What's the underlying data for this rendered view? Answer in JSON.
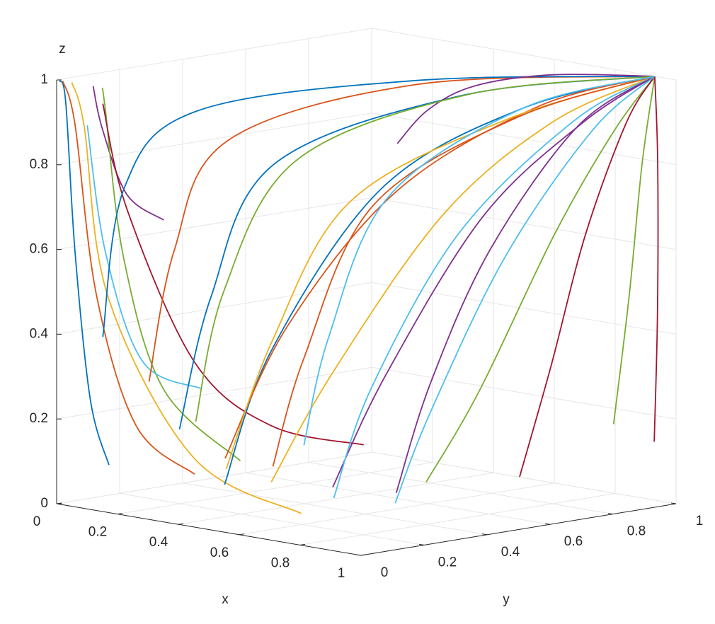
{
  "chart_data": {
    "type": "line3d",
    "xlabel": "x",
    "ylabel": "y",
    "zlabel": "z",
    "xlim": [
      0,
      1
    ],
    "ylim": [
      0,
      1
    ],
    "zlim": [
      0,
      1
    ],
    "xticks": [
      0,
      0.2,
      0.4,
      0.6,
      0.8,
      1
    ],
    "yticks": [
      0,
      0.2,
      0.4,
      0.6,
      0.8,
      1
    ],
    "zticks": [
      0,
      0.2,
      0.4,
      0.6,
      0.8,
      1
    ],
    "grid": true,
    "series": [
      {
        "color": "#0072BD",
        "x": [
          0.01,
          0.03,
          0.05,
          0.08,
          0.12
        ],
        "y": [
          0,
          0,
          0.01,
          0.03,
          0.05
        ],
        "z": [
          1,
          0.95,
          0.6,
          0.25,
          0.1
        ]
      },
      {
        "color": "#D95319",
        "x": [
          0.02,
          0.05,
          0.1,
          0.2,
          0.35
        ],
        "y": [
          0,
          0.01,
          0.03,
          0.06,
          0.1
        ],
        "z": [
          1,
          0.9,
          0.5,
          0.2,
          0.1
        ]
      },
      {
        "color": "#EDB120",
        "x": [
          0.05,
          0.08,
          0.15,
          0.4,
          0.7
        ],
        "y": [
          0,
          0.01,
          0.02,
          0.05,
          0.1
        ],
        "z": [
          1,
          0.9,
          0.5,
          0.15,
          0.05
        ]
      },
      {
        "color": "#7E2F8E",
        "x": [
          0.12,
          0.14,
          0.2,
          0.3
        ],
        "y": [
          0,
          0.01,
          0.03,
          0.05
        ],
        "z": [
          1,
          0.9,
          0.75,
          0.7
        ]
      },
      {
        "color": "#77AC30",
        "x": [
          0.15,
          0.16,
          0.2,
          0.3,
          0.5
        ],
        "y": [
          0,
          0,
          0.02,
          0.05,
          0.1
        ],
        "z": [
          1,
          0.95,
          0.6,
          0.3,
          0.15
        ]
      },
      {
        "color": "#4DBEEE",
        "x": [
          0.08,
          0.12,
          0.2,
          0.35
        ],
        "y": [
          0.02,
          0.04,
          0.08,
          0.12
        ],
        "z": [
          0.9,
          0.6,
          0.35,
          0.3
        ]
      },
      {
        "color": "#A2142F",
        "x": [
          0.1,
          0.15,
          0.3,
          0.5,
          0.75
        ],
        "y": [
          0.05,
          0.08,
          0.15,
          0.2,
          0.25
        ],
        "z": [
          0.95,
          0.7,
          0.35,
          0.22,
          0.2
        ]
      },
      {
        "color": "#0072BD",
        "x": [
          0.5,
          0.5,
          0.55,
          0.7,
          0.93
        ],
        "y": [
          0.05,
          0.2,
          0.5,
          0.8,
          1
        ],
        "z": [
          0.1,
          0.4,
          0.75,
          0.92,
          1
        ]
      },
      {
        "color": "#D95319",
        "x": [
          0.45,
          0.5,
          0.6,
          0.75,
          0.93
        ],
        "y": [
          0.1,
          0.25,
          0.5,
          0.8,
          1
        ],
        "z": [
          0.15,
          0.45,
          0.75,
          0.93,
          1
        ]
      },
      {
        "color": "#EDB120",
        "x": [
          0.55,
          0.6,
          0.7,
          0.8,
          0.93
        ],
        "y": [
          0.15,
          0.3,
          0.55,
          0.8,
          1
        ],
        "z": [
          0.1,
          0.35,
          0.7,
          0.9,
          1
        ]
      },
      {
        "color": "#7E2F8E",
        "x": [
          0.7,
          0.72,
          0.78,
          0.85,
          0.93
        ],
        "y": [
          0.2,
          0.35,
          0.6,
          0.85,
          1
        ],
        "z": [
          0.1,
          0.35,
          0.7,
          0.9,
          1
        ]
      },
      {
        "color": "#77AC30",
        "x": [
          0.8,
          0.82,
          0.86,
          0.9,
          0.93
        ],
        "y": [
          0.4,
          0.55,
          0.75,
          0.9,
          1
        ],
        "z": [
          0.1,
          0.3,
          0.65,
          0.88,
          1
        ]
      },
      {
        "color": "#4DBEEE",
        "x": [
          0.6,
          0.62,
          0.7,
          0.82,
          0.93
        ],
        "y": [
          0.3,
          0.4,
          0.6,
          0.85,
          1
        ],
        "z": [
          0.05,
          0.3,
          0.65,
          0.9,
          1
        ]
      },
      {
        "color": "#A2142F",
        "x": [
          0.9,
          0.9,
          0.91,
          0.92,
          0.93
        ],
        "y": [
          0.6,
          0.7,
          0.8,
          0.92,
          1
        ],
        "z": [
          0.1,
          0.35,
          0.65,
          0.9,
          1
        ]
      },
      {
        "color": "#0072BD",
        "x": [
          0.3,
          0.3,
          0.35,
          0.6,
          0.93
        ],
        "y": [
          0.1,
          0.2,
          0.35,
          0.7,
          1
        ],
        "z": [
          0.2,
          0.5,
          0.8,
          0.95,
          1
        ]
      },
      {
        "color": "#D95319",
        "x": [
          0.2,
          0.2,
          0.25,
          0.5,
          0.93
        ],
        "y": [
          0.1,
          0.18,
          0.3,
          0.65,
          1
        ],
        "z": [
          0.3,
          0.6,
          0.85,
          0.97,
          1
        ]
      },
      {
        "color": "#EDB120",
        "x": [
          0.35,
          0.4,
          0.5,
          0.7,
          0.93
        ],
        "y": [
          0.2,
          0.3,
          0.45,
          0.75,
          1
        ],
        "z": [
          0.1,
          0.4,
          0.72,
          0.9,
          1
        ]
      },
      {
        "color": "#7E2F8E",
        "x": [
          0.65,
          0.66,
          0.7,
          0.8,
          0.93
        ],
        "y": [
          0.45,
          0.55,
          0.7,
          0.88,
          1
        ],
        "z": [
          0.05,
          0.3,
          0.6,
          0.88,
          1
        ]
      },
      {
        "color": "#77AC30",
        "x": [
          0.95,
          0.95,
          0.94,
          0.93
        ],
        "y": [
          0.85,
          0.9,
          0.95,
          1
        ],
        "z": [
          0.2,
          0.5,
          0.8,
          1
        ]
      },
      {
        "color": "#4DBEEE",
        "x": [
          0.75,
          0.76,
          0.8,
          0.86,
          0.93
        ],
        "y": [
          0.35,
          0.45,
          0.65,
          0.87,
          1
        ],
        "z": [
          0.05,
          0.25,
          0.6,
          0.88,
          1
        ]
      },
      {
        "color": "#A2142F",
        "x": [
          0.98,
          0.97,
          0.95,
          0.93
        ],
        "y": [
          0.95,
          0.97,
          0.99,
          1
        ],
        "z": [
          0.15,
          0.45,
          0.8,
          1
        ]
      },
      {
        "color": "#0072BD",
        "x": [
          0.1,
          0.12,
          0.2,
          0.5,
          0.93
        ],
        "y": [
          0.05,
          0.1,
          0.25,
          0.65,
          1
        ],
        "z": [
          0.4,
          0.75,
          0.92,
          0.98,
          1
        ]
      },
      {
        "color": "#D95319",
        "x": [
          0.4,
          0.42,
          0.5,
          0.7,
          0.93
        ],
        "y": [
          0.3,
          0.38,
          0.52,
          0.78,
          1
        ],
        "z": [
          0.1,
          0.35,
          0.7,
          0.9,
          1
        ]
      },
      {
        "color": "#7E2F8E",
        "x": [
          0.55,
          0.6,
          0.65,
          0.75,
          0.93
        ],
        "y": [
          0.55,
          0.6,
          0.7,
          0.85,
          1
        ],
        "z": [
          0.85,
          0.93,
          0.98,
          1,
          1
        ]
      },
      {
        "color": "#77AC30",
        "x": [
          0.25,
          0.26,
          0.35,
          0.6,
          0.93
        ],
        "y": [
          0.2,
          0.28,
          0.42,
          0.72,
          1
        ],
        "z": [
          0.2,
          0.5,
          0.8,
          0.95,
          1
        ]
      },
      {
        "color": "#4DBEEE",
        "x": [
          0.45,
          0.46,
          0.52,
          0.7,
          0.93
        ],
        "y": [
          0.35,
          0.42,
          0.55,
          0.8,
          1
        ],
        "z": [
          0.15,
          0.4,
          0.72,
          0.92,
          1
        ]
      }
    ]
  }
}
